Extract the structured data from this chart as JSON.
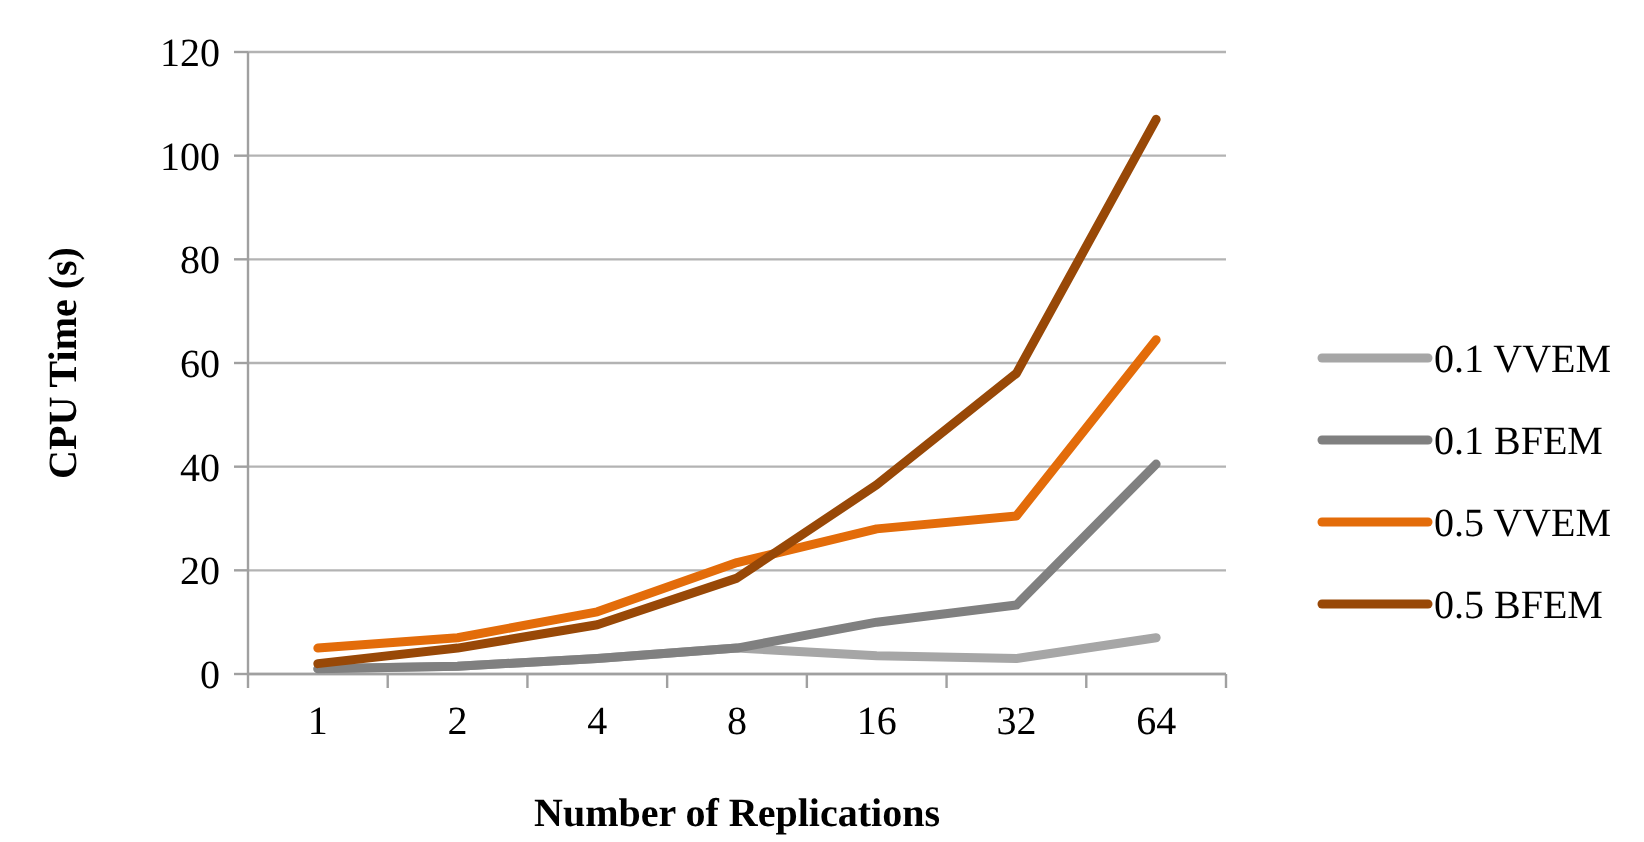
{
  "chart_data": {
    "type": "line",
    "xlabel": "Number of Replications",
    "ylabel": "CPU Time (s)",
    "categories": [
      "1",
      "2",
      "4",
      "8",
      "16",
      "32",
      "64"
    ],
    "series": [
      {
        "name": "0.1 VVEM",
        "color": "#a6a6a6",
        "values": [
          1,
          1.5,
          3,
          5,
          3.5,
          3,
          7
        ]
      },
      {
        "name": "0.1 BFEM",
        "color": "#808080",
        "values": [
          1,
          1.5,
          3,
          5,
          10,
          13.3,
          40.5
        ]
      },
      {
        "name": "0.5 VVEM",
        "color": "#e36c0a",
        "values": [
          5,
          7,
          12,
          21.5,
          28,
          30.5,
          64.5
        ]
      },
      {
        "name": "0.5 BFEM",
        "color": "#984807",
        "values": [
          2,
          5,
          9.5,
          18.5,
          36.5,
          58,
          107
        ]
      }
    ],
    "ylim": [
      0,
      120
    ],
    "yticks": [
      0,
      20,
      40,
      60,
      80,
      100,
      120
    ],
    "grid": "y",
    "legend": "right",
    "marker": "none",
    "line_style": "solid"
  }
}
